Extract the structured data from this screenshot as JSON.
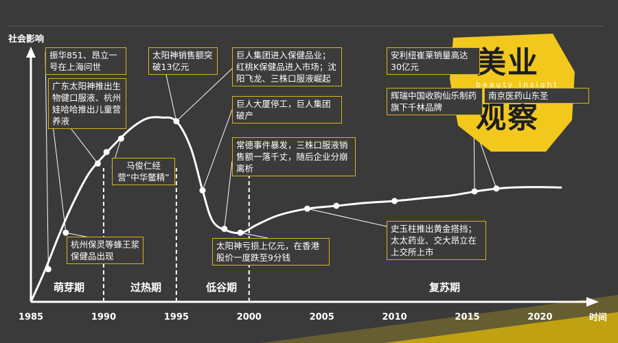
{
  "chart_data": {
    "type": "line",
    "ylabel": "社会影响",
    "xlabel": "时间",
    "x_ticks": [
      "1985",
      "1990",
      "1995",
      "2000",
      "2005",
      "2010",
      "2015",
      "2020"
    ],
    "xlim": [
      1985,
      2023
    ],
    "ylim": [
      0,
      100
    ],
    "grid": false,
    "series": [
      {
        "x": [
          1985,
          1986,
          1987,
          1988,
          1989,
          1990,
          1991,
          1992,
          1993,
          1994,
          1995,
          1996,
          1996.8,
          1997.5,
          1998.5,
          1999.5,
          2000.5,
          2002,
          2004,
          2006,
          2008,
          2010,
          2012,
          2014,
          2016,
          2018,
          2020,
          2021.5
        ],
        "y": [
          0,
          17,
          36,
          53,
          67,
          76,
          84,
          91,
          95.5,
          96,
          94,
          80,
          58,
          42,
          37,
          36,
          40,
          45,
          48.5,
          50,
          51.5,
          52.5,
          54,
          55.5,
          58,
          59.5,
          59.7,
          59.5
        ]
      }
    ],
    "markers": [
      {
        "x": 1986.2,
        "y": 17
      },
      {
        "x": 1987.4,
        "y": 36
      },
      {
        "x": 1989.6,
        "y": 72
      },
      {
        "x": 1990.2,
        "y": 78
      },
      {
        "x": 1991.2,
        "y": 85
      },
      {
        "x": 1995,
        "y": 94
      },
      {
        "x": 1996.8,
        "y": 58
      },
      {
        "x": 1998.3,
        "y": 38
      },
      {
        "x": 1999.4,
        "y": 36
      },
      {
        "x": 2004,
        "y": 48.5
      },
      {
        "x": 2006,
        "y": 50
      },
      {
        "x": 2010,
        "y": 52.5
      },
      {
        "x": 2015.5,
        "y": 57.5
      },
      {
        "x": 2017,
        "y": 59
      }
    ],
    "phases": [
      "萌芽期",
      "过热期",
      "低谷期",
      "复苏期"
    ],
    "phase_dividers": [
      1990,
      1995,
      2000
    ],
    "annotations": [
      "振华851、昂立一号在上海问世",
      "广东太阳神推出生物健口服液、杭州娃哈哈推出儿童营养液",
      "马俊仁经营“中华鳖精”",
      "太阳神销售额突破13亿元",
      "巨人集团进入保健品业；红桃K保健品进入市场；沈阳飞龙、三株口服液崛起",
      "巨人大厦停工，巨人集团破产",
      "常德事件暴发，三株口服液销售额一落千丈，随后企业分崩离析",
      "太阳神亏损上亿元，在香港股价一度跌至9分钱",
      "杭州保灵等蜂王浆保健品出现",
      "安利纽崔莱销量高达30亿元",
      "辉瑞中国收购仙乐制药旗下千林品牌",
      "南京医药山东圣",
      "史玉柱推出黄金搭挡；太太药业、交大昂立在上交所上市"
    ]
  },
  "callouts": {
    "c1": "振华851、昂立一号在上海问世",
    "c2": "广东太阳神推出生物健口服液、杭州娃哈哈推出儿童营养液",
    "c3": "马俊仁经营“中华鳖精”",
    "c4": "太阳神销售额突破13亿元",
    "c5": "巨人集团进入保健品业；红桃K保健品进入市场；沈阳飞龙、三株口服液崛起",
    "c6": "巨人大厦停工，巨人集团破产",
    "c7": "常德事件暴发，三株口服液销售额一落千丈，随后企业分崩离析",
    "c8": "太阳神亏损上亿元，在香港股价一度跌至9分钱",
    "c9": "杭州保灵等蜂王浆保健品出现",
    "c10": "安利纽崔莱销量高达30亿元",
    "c11": "辉瑞中国收购仙乐制药旗下千林品牌",
    "c12": "南京医药山东圣",
    "c13": "史玉柱推出黄金搭挡；太太药业、交大昂立在上交所上市"
  },
  "badge": {
    "line1": "美业",
    "line2": "观察",
    "tagline": "beauty  insight"
  },
  "colors": {
    "background": "#3a3a3a",
    "accent": "#f2c81d",
    "callout_border": "#d9b51f",
    "curve": "#ffffff"
  }
}
